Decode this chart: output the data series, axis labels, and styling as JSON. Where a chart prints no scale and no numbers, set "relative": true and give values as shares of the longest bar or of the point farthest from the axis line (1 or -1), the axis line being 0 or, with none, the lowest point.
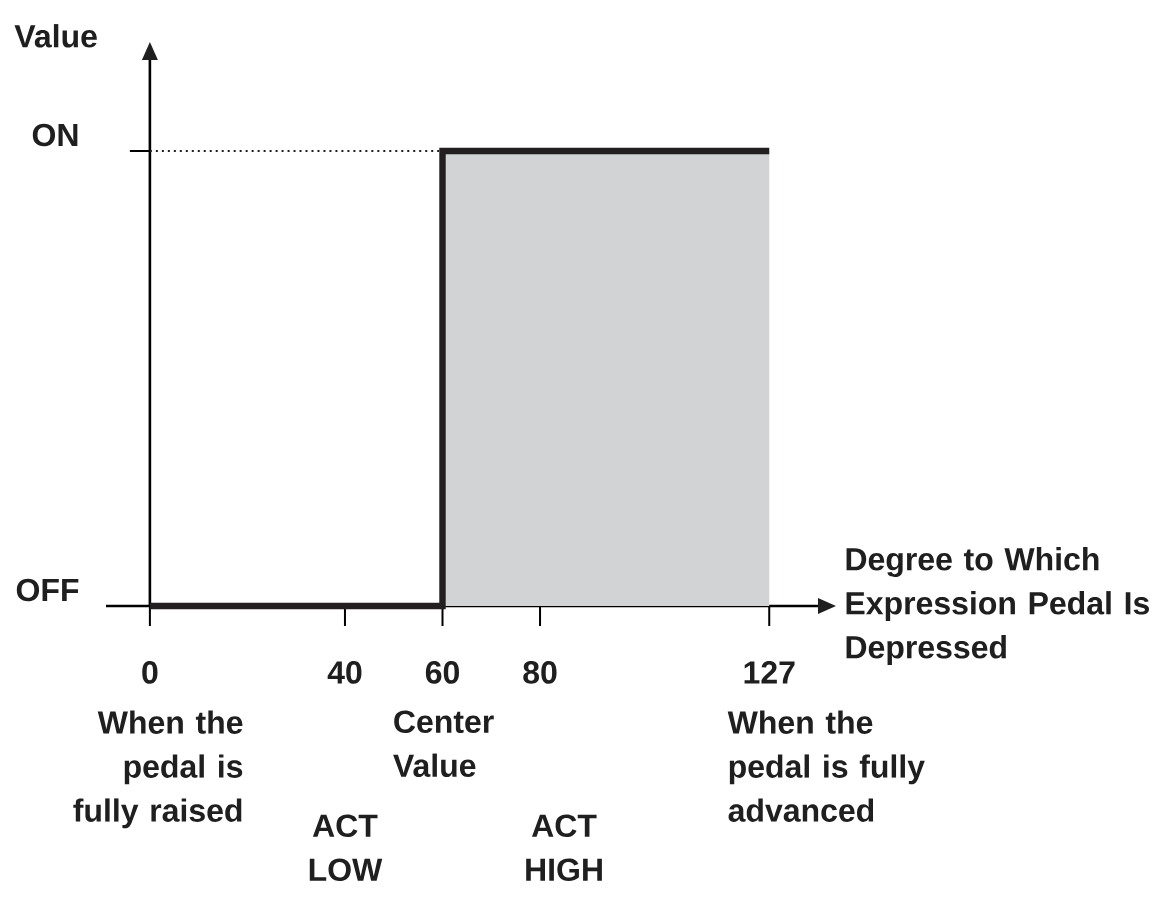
{
  "chart_data": {
    "type": "step",
    "xlabel": "Degree to Which Expression Pedal Is Depressed",
    "ylabel": "Value",
    "x": [
      0,
      60,
      127
    ],
    "series": [
      {
        "color": "#231f20",
        "values": [
          0,
          1,
          1
        ]
      }
    ],
    "relative": true,
    "xlim": [
      -9,
      137
    ],
    "xticks": [
      0,
      40,
      60,
      80,
      127
    ],
    "ref_lines": [
      {
        "axis": "y",
        "value": 1,
        "line_style": "dotted"
      }
    ],
    "bands": [
      {
        "axis": "x",
        "from": 60,
        "to": 127,
        "color": "#d1d3d4"
      }
    ],
    "annotations": [
      "ON",
      "OFF",
      "When the pedal is fully raised",
      "Center Value",
      "ACT LOW",
      "ACT HIGH",
      "When the pedal is fully advanced"
    ]
  }
}
